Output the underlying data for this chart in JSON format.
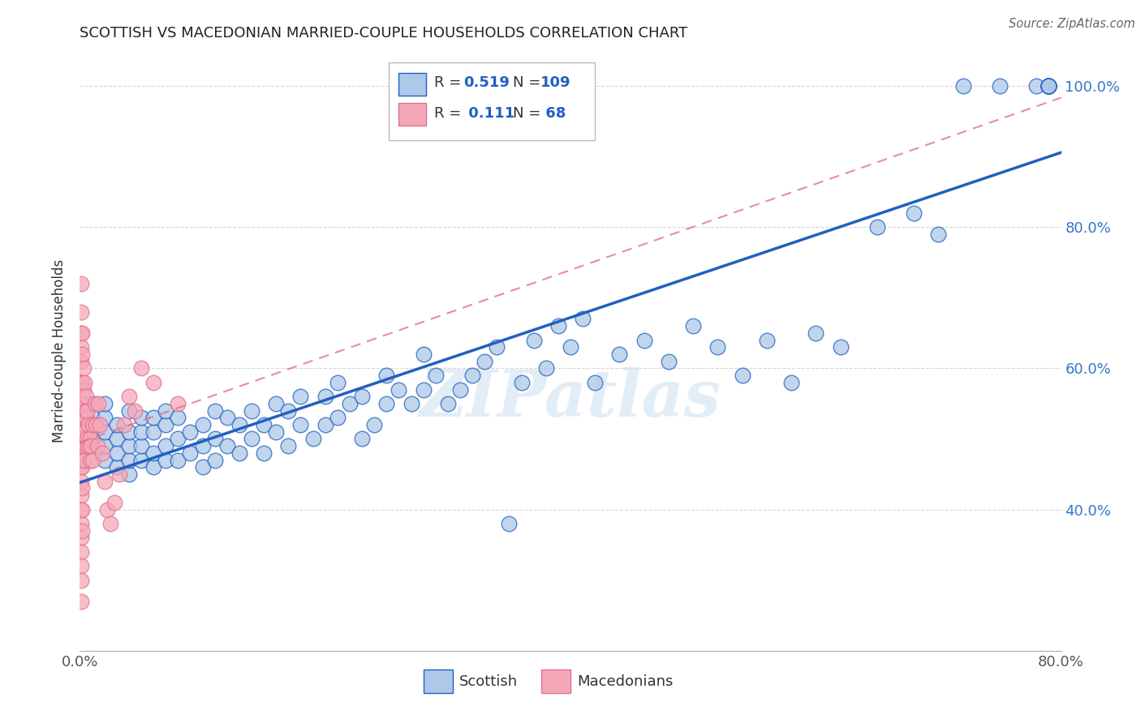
{
  "title": "SCOTTISH VS MACEDONIAN MARRIED-COUPLE HOUSEHOLDS CORRELATION CHART",
  "source": "Source: ZipAtlas.com",
  "ylabel": "Married-couple Households",
  "xlim": [
    0.0,
    0.8
  ],
  "ylim": [
    0.2,
    1.05
  ],
  "x_ticks": [
    0.0,
    0.1,
    0.2,
    0.3,
    0.4,
    0.5,
    0.6,
    0.7,
    0.8
  ],
  "x_tick_labels": [
    "0.0%",
    "",
    "",
    "",
    "",
    "",
    "",
    "",
    "80.0%"
  ],
  "y_ticks": [
    0.4,
    0.6,
    0.8,
    1.0
  ],
  "y_tick_labels": [
    "40.0%",
    "60.0%",
    "80.0%",
    "100.0%"
  ],
  "legend_blue_label": "Scottish",
  "legend_pink_label": "Macedonians",
  "R_blue": 0.519,
  "N_blue": 109,
  "R_pink": 0.111,
  "N_pink": 68,
  "blue_color": "#adc8e8",
  "pink_color": "#f5a8b8",
  "blue_line_color": "#2060c0",
  "pink_line_color": "#e07090",
  "watermark": "ZIPatlas",
  "scottish_x": [
    0.01,
    0.01,
    0.01,
    0.02,
    0.02,
    0.02,
    0.02,
    0.02,
    0.03,
    0.03,
    0.03,
    0.03,
    0.04,
    0.04,
    0.04,
    0.04,
    0.04,
    0.05,
    0.05,
    0.05,
    0.05,
    0.06,
    0.06,
    0.06,
    0.06,
    0.07,
    0.07,
    0.07,
    0.07,
    0.08,
    0.08,
    0.08,
    0.09,
    0.09,
    0.1,
    0.1,
    0.1,
    0.11,
    0.11,
    0.11,
    0.12,
    0.12,
    0.13,
    0.13,
    0.14,
    0.14,
    0.15,
    0.15,
    0.16,
    0.16,
    0.17,
    0.17,
    0.18,
    0.18,
    0.19,
    0.2,
    0.2,
    0.21,
    0.21,
    0.22,
    0.23,
    0.23,
    0.24,
    0.25,
    0.25,
    0.26,
    0.27,
    0.28,
    0.28,
    0.29,
    0.3,
    0.31,
    0.32,
    0.33,
    0.34,
    0.35,
    0.36,
    0.37,
    0.38,
    0.39,
    0.4,
    0.41,
    0.42,
    0.44,
    0.46,
    0.48,
    0.5,
    0.52,
    0.54,
    0.56,
    0.58,
    0.6,
    0.62,
    0.65,
    0.68,
    0.7,
    0.72,
    0.75,
    0.78,
    0.79,
    0.79,
    0.79,
    0.79,
    0.79,
    0.79,
    0.79,
    0.79,
    0.79,
    0.79
  ],
  "scottish_y": [
    0.5,
    0.53,
    0.55,
    0.47,
    0.49,
    0.51,
    0.53,
    0.55,
    0.46,
    0.48,
    0.5,
    0.52,
    0.45,
    0.47,
    0.49,
    0.51,
    0.54,
    0.47,
    0.49,
    0.51,
    0.53,
    0.46,
    0.48,
    0.51,
    0.53,
    0.47,
    0.49,
    0.52,
    0.54,
    0.47,
    0.5,
    0.53,
    0.48,
    0.51,
    0.46,
    0.49,
    0.52,
    0.47,
    0.5,
    0.54,
    0.49,
    0.53,
    0.48,
    0.52,
    0.5,
    0.54,
    0.48,
    0.52,
    0.51,
    0.55,
    0.49,
    0.54,
    0.52,
    0.56,
    0.5,
    0.52,
    0.56,
    0.53,
    0.58,
    0.55,
    0.5,
    0.56,
    0.52,
    0.55,
    0.59,
    0.57,
    0.55,
    0.57,
    0.62,
    0.59,
    0.55,
    0.57,
    0.59,
    0.61,
    0.63,
    0.38,
    0.58,
    0.64,
    0.6,
    0.66,
    0.63,
    0.67,
    0.58,
    0.62,
    0.64,
    0.61,
    0.66,
    0.63,
    0.59,
    0.64,
    0.58,
    0.65,
    0.63,
    0.8,
    0.82,
    0.79,
    1.0,
    1.0,
    1.0,
    1.0,
    1.0,
    1.0,
    1.0,
    1.0,
    1.0,
    1.0,
    1.0,
    1.0,
    1.0
  ],
  "macedonian_x": [
    0.001,
    0.001,
    0.001,
    0.001,
    0.001,
    0.001,
    0.001,
    0.001,
    0.001,
    0.001,
    0.001,
    0.001,
    0.001,
    0.001,
    0.001,
    0.001,
    0.001,
    0.001,
    0.001,
    0.001,
    0.002,
    0.002,
    0.002,
    0.002,
    0.002,
    0.002,
    0.002,
    0.002,
    0.002,
    0.002,
    0.003,
    0.003,
    0.003,
    0.003,
    0.003,
    0.004,
    0.004,
    0.004,
    0.004,
    0.005,
    0.005,
    0.005,
    0.006,
    0.006,
    0.007,
    0.007,
    0.008,
    0.008,
    0.009,
    0.01,
    0.01,
    0.012,
    0.013,
    0.014,
    0.015,
    0.016,
    0.018,
    0.02,
    0.022,
    0.025,
    0.028,
    0.032,
    0.036,
    0.04,
    0.045,
    0.05,
    0.06,
    0.08
  ],
  "macedonian_y": [
    0.72,
    0.68,
    0.65,
    0.63,
    0.61,
    0.58,
    0.55,
    0.53,
    0.5,
    0.48,
    0.46,
    0.44,
    0.42,
    0.4,
    0.38,
    0.36,
    0.34,
    0.32,
    0.3,
    0.27,
    0.65,
    0.62,
    0.58,
    0.55,
    0.52,
    0.49,
    0.46,
    0.43,
    0.4,
    0.37,
    0.6,
    0.57,
    0.53,
    0.5,
    0.47,
    0.58,
    0.54,
    0.51,
    0.47,
    0.56,
    0.53,
    0.49,
    0.54,
    0.5,
    0.52,
    0.49,
    0.5,
    0.47,
    0.49,
    0.52,
    0.47,
    0.55,
    0.52,
    0.49,
    0.55,
    0.52,
    0.48,
    0.44,
    0.4,
    0.38,
    0.41,
    0.45,
    0.52,
    0.56,
    0.54,
    0.6,
    0.58,
    0.55
  ]
}
